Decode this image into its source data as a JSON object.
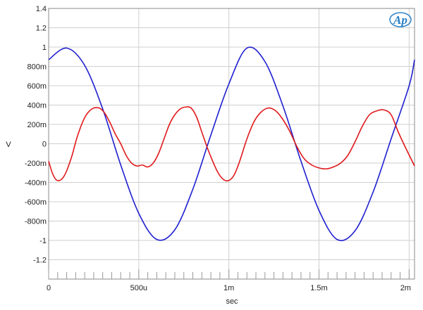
{
  "chart_data": {
    "type": "line",
    "title": "",
    "xlabel": "sec",
    "ylabel": "V",
    "xlim": [
      0,
      0.00203
    ],
    "ylim": [
      -1.4,
      1.4
    ],
    "grid": true,
    "x_ticks": [
      {
        "value": 0,
        "label": "0"
      },
      {
        "value": 0.0005,
        "label": "500u"
      },
      {
        "value": 0.001,
        "label": "1m"
      },
      {
        "value": 0.0015,
        "label": "1.5m"
      },
      {
        "value": 0.002,
        "label": "2m"
      }
    ],
    "y_ticks": [
      {
        "value": 1.4,
        "label": "1.4"
      },
      {
        "value": 1.2,
        "label": "1.2"
      },
      {
        "value": 1.0,
        "label": "1"
      },
      {
        "value": 0.8,
        "label": "800m"
      },
      {
        "value": 0.6,
        "label": "600m"
      },
      {
        "value": 0.4,
        "label": "400m"
      },
      {
        "value": 0.2,
        "label": "200m"
      },
      {
        "value": 0,
        "label": "0"
      },
      {
        "value": -0.2,
        "label": "-200m"
      },
      {
        "value": -0.4,
        "label": "-400m"
      },
      {
        "value": -0.6,
        "label": "-600m"
      },
      {
        "value": -0.8,
        "label": "-800m"
      },
      {
        "value": -1.0,
        "label": "-1"
      },
      {
        "value": -1.2,
        "label": "-1.2"
      }
    ],
    "series": [
      {
        "color": "#1f1fd0",
        "x": [
          0,
          0.0001,
          0.0002,
          0.0003,
          0.0004,
          0.0005,
          0.0006,
          0.0007,
          0.0008,
          0.0009,
          0.001,
          0.0011,
          0.0012,
          0.0013,
          0.0014,
          0.0015,
          0.0016,
          0.0017,
          0.0018,
          0.0019,
          0.002,
          0.00203
        ],
        "values": [
          0.87,
          0.99,
          0.81,
          0.36,
          -0.22,
          -0.72,
          -0.99,
          -0.89,
          -0.47,
          0.09,
          0.62,
          0.99,
          0.85,
          0.39,
          -0.18,
          -0.69,
          -0.99,
          -0.9,
          -0.5,
          0.05,
          0.6,
          0.87
        ]
      },
      {
        "color": "#e0191c",
        "x": [
          0,
          2e-05,
          4e-05,
          6e-05,
          8e-05,
          0.0001,
          0.00013,
          0.00016,
          0.0002,
          0.00024,
          0.00028,
          0.00031,
          0.00034,
          0.00037,
          0.0004,
          0.00043,
          0.00046,
          0.00049,
          0.00052,
          0.00055,
          0.00058,
          0.00061,
          0.00064,
          0.00067,
          0.0007,
          0.00073,
          0.00076,
          0.00079,
          0.00082,
          0.00085,
          0.00088,
          0.00091,
          0.00094,
          0.00097,
          0.001,
          0.00103,
          0.00106,
          0.0011,
          0.00114,
          0.00118,
          0.00122,
          0.00126,
          0.0013,
          0.00134,
          0.00138,
          0.00142,
          0.00146,
          0.0015,
          0.00154,
          0.00158,
          0.00162,
          0.00166,
          0.0017,
          0.00174,
          0.00178,
          0.00182,
          0.00186,
          0.0019,
          0.00194,
          0.00198,
          0.00203
        ],
        "values": [
          -0.18,
          -0.3,
          -0.37,
          -0.38,
          -0.35,
          -0.28,
          -0.12,
          0.08,
          0.27,
          0.36,
          0.37,
          0.32,
          0.22,
          0.1,
          0.0,
          -0.12,
          -0.2,
          -0.23,
          -0.22,
          -0.24,
          -0.2,
          -0.1,
          0.05,
          0.2,
          0.3,
          0.36,
          0.38,
          0.37,
          0.28,
          0.12,
          -0.04,
          -0.18,
          -0.3,
          -0.37,
          -0.38,
          -0.32,
          -0.18,
          0.05,
          0.23,
          0.33,
          0.37,
          0.34,
          0.25,
          0.12,
          -0.04,
          -0.16,
          -0.22,
          -0.25,
          -0.26,
          -0.24,
          -0.2,
          -0.12,
          0.02,
          0.18,
          0.3,
          0.34,
          0.35,
          0.3,
          0.12,
          -0.04,
          -0.23
        ]
      }
    ]
  },
  "logo": {
    "text": "Ap",
    "color": "#2a7fc6"
  }
}
